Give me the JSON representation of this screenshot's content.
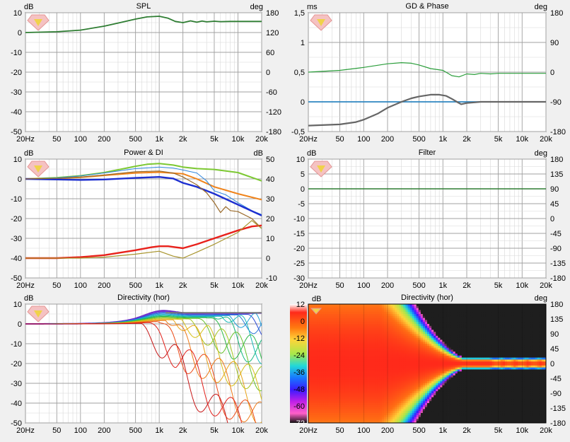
{
  "chart_data": [
    {
      "id": "spl",
      "type": "line",
      "title": "SPL",
      "left_unit": "dB",
      "right_unit": "deg",
      "x_ticks": [
        "20Hz",
        "50",
        "100",
        "200",
        "500",
        "1k",
        "2k",
        "5k",
        "10k",
        "20k"
      ],
      "y_left_ticks": [
        "10",
        "0",
        "-10",
        "-20",
        "-30",
        "-40",
        "-50"
      ],
      "y_right_ticks": [
        "180",
        "120",
        "60",
        "0",
        "-60",
        "-120",
        "-180"
      ],
      "xlim": [
        20,
        20000
      ],
      "ylim": [
        -50,
        10
      ],
      "y2lim": [
        -180,
        180
      ],
      "grid": true,
      "series": [
        {
          "color": "#2e7d32",
          "width": 1.8,
          "axis": "left",
          "x": [
            20,
            50,
            100,
            200,
            300,
            500,
            700,
            1000,
            1300,
            1600,
            2000,
            2500,
            3000,
            3500,
            4000,
            5000,
            6000,
            8000,
            10000,
            15000,
            20000
          ],
          "y": [
            0,
            0.4,
            1.2,
            3.2,
            4.8,
            6.8,
            7.9,
            8.2,
            7.2,
            5.6,
            5.0,
            5.9,
            5.2,
            5.8,
            5.4,
            5.7,
            5.5,
            5.6,
            5.6,
            5.6,
            5.6
          ]
        }
      ]
    },
    {
      "id": "gd",
      "type": "line",
      "title": "GD & Phase",
      "left_unit": "ms",
      "right_unit": "deg",
      "x_ticks": [
        "20Hz",
        "50",
        "100",
        "200",
        "500",
        "1k",
        "2k",
        "5k",
        "10k",
        "20k"
      ],
      "y_left_ticks": [
        "1,5",
        "1",
        "0,5",
        "0",
        "-0,5"
      ],
      "y_right_ticks": [
        "180",
        "90",
        "0",
        "-90",
        "-180"
      ],
      "xlim": [
        20,
        20000
      ],
      "ylim": [
        -0.5,
        1.5
      ],
      "y2lim": [
        -180,
        180
      ],
      "grid": true,
      "series": [
        {
          "color": "#2a9d3a",
          "width": 1.2,
          "axis": "left",
          "x": [
            20,
            50,
            100,
            200,
            300,
            400,
            500,
            700,
            1000,
            1300,
            1600,
            2000,
            2500,
            3000,
            4000,
            5000,
            7000,
            10000,
            20000
          ],
          "y": [
            0.5,
            0.53,
            0.58,
            0.64,
            0.66,
            0.65,
            0.62,
            0.56,
            0.53,
            0.44,
            0.42,
            0.47,
            0.46,
            0.48,
            0.47,
            0.48,
            0.48,
            0.48,
            0.48
          ]
        },
        {
          "color": "#2e86c1",
          "width": 1.8,
          "axis": "left",
          "x": [
            20,
            20000
          ],
          "y": [
            0,
            0
          ]
        },
        {
          "color": "#666666",
          "width": 2.2,
          "axis": "left",
          "x": [
            20,
            50,
            80,
            100,
            150,
            200,
            300,
            400,
            500,
            700,
            900,
            1100,
            1300,
            1500,
            1700,
            2000,
            2500,
            3000,
            4000,
            5000,
            7000,
            10000,
            20000
          ],
          "y": [
            -0.4,
            -0.38,
            -0.34,
            -0.3,
            -0.2,
            -0.1,
            0.0,
            0.06,
            0.09,
            0.12,
            0.12,
            0.1,
            0.05,
            0.0,
            -0.04,
            -0.02,
            -0.01,
            0.0,
            0.0,
            0.0,
            0.0,
            0.0,
            0.0
          ]
        }
      ]
    },
    {
      "id": "power",
      "type": "line",
      "title": "Power & DI",
      "left_unit": "dB",
      "right_unit": "dB",
      "x_ticks": [
        "20Hz",
        "50",
        "100",
        "200",
        "500",
        "1k",
        "2k",
        "5k",
        "10k",
        "20k"
      ],
      "y_left_ticks": [
        "10",
        "0",
        "-10",
        "-20",
        "-30",
        "-40",
        "-50"
      ],
      "y_right_ticks": [
        "50",
        "40",
        "30",
        "20",
        "10",
        "0",
        "-10"
      ],
      "xlim": [
        20,
        20000
      ],
      "ylim": [
        -50,
        10
      ],
      "y2lim": [
        -10,
        50
      ],
      "grid": true,
      "series": [
        {
          "color": "#7cc832",
          "width": 2,
          "axis": "left",
          "x": [
            20,
            50,
            100,
            200,
            500,
            700,
            1000,
            1500,
            2000,
            3000,
            5000,
            10000,
            20000
          ],
          "y": [
            0,
            0.6,
            1.6,
            3.2,
            6.4,
            7.4,
            7.8,
            7.0,
            6.0,
            5.2,
            4.8,
            3.2,
            -1
          ]
        },
        {
          "color": "#f0831a",
          "width": 2,
          "axis": "left",
          "x": [
            20,
            50,
            100,
            200,
            500,
            1000,
            2000,
            3000,
            5000,
            10000,
            20000
          ],
          "y": [
            0,
            0.3,
            0.8,
            1.8,
            3.0,
            3.4,
            2.6,
            0,
            -4,
            -7.5,
            -10.5
          ]
        },
        {
          "color": "#2e86de",
          "width": 1,
          "axis": "left",
          "x": [
            20,
            50,
            100,
            200,
            500,
            1000,
            1500,
            2000,
            3000,
            4000,
            5000,
            7000,
            10000,
            15000,
            20000
          ],
          "y": [
            0,
            0.5,
            1.5,
            3,
            5.2,
            6,
            5.5,
            4.5,
            3,
            -1,
            -6,
            -8,
            -12,
            -16,
            -18
          ]
        },
        {
          "color": "#1d2fd0",
          "width": 2.4,
          "axis": "left",
          "x": [
            20,
            50,
            100,
            200,
            500,
            1000,
            1500,
            2000,
            3000,
            5000,
            10000,
            20000
          ],
          "y": [
            0,
            -0.3,
            -0.5,
            -0.3,
            0.5,
            1.0,
            0.2,
            -2.0,
            -4.0,
            -7.5,
            -13,
            -18.5
          ]
        },
        {
          "color": "#9a6a2a",
          "width": 1.2,
          "axis": "left",
          "x": [
            20,
            50,
            100,
            200,
            500,
            1000,
            1500,
            2000,
            3000,
            4000,
            5000,
            6000,
            7000,
            8000,
            10000,
            15000,
            20000
          ],
          "y": [
            0,
            0.3,
            0.9,
            2,
            3.6,
            4,
            3,
            1,
            -3,
            -7,
            -12,
            -17,
            -14,
            -16,
            -16.5,
            -20,
            -25
          ]
        },
        {
          "color": "#e8211b",
          "width": 2.4,
          "axis": "left",
          "x": [
            20,
            50,
            100,
            200,
            500,
            800,
            1000,
            1300,
            1600,
            2000,
            3000,
            5000,
            10000,
            15000,
            20000
          ],
          "y": [
            -40,
            -40,
            -39.5,
            -38.5,
            -36,
            -34.5,
            -34,
            -34,
            -34.5,
            -35,
            -33,
            -30,
            -26,
            -24,
            -23.5
          ]
        },
        {
          "color": "#a8942c",
          "width": 1.2,
          "axis": "left",
          "x": [
            20,
            50,
            100,
            200,
            500,
            1000,
            1500,
            2000,
            3000,
            5000,
            10000,
            15000,
            20000
          ],
          "y": [
            -40,
            -40,
            -40,
            -39.5,
            -38,
            -36.5,
            -39,
            -40,
            -37,
            -33,
            -27,
            -21,
            -25
          ]
        }
      ]
    },
    {
      "id": "filter",
      "type": "line",
      "title": "Filter",
      "left_unit": "dB",
      "right_unit": "deg",
      "x_ticks": [
        "20Hz",
        "50",
        "100",
        "200",
        "500",
        "1k",
        "2k",
        "5k",
        "10k",
        "20k"
      ],
      "y_left_ticks": [
        "10",
        "5",
        "0",
        "-5",
        "-10",
        "-15",
        "-20",
        "-25",
        "-30"
      ],
      "y_right_ticks": [
        "180",
        "135",
        "90",
        "45",
        "0",
        "-45",
        "-90",
        "-135",
        "-180"
      ],
      "xlim": [
        20,
        20000
      ],
      "ylim": [
        -30,
        10
      ],
      "y2lim": [
        -180,
        180
      ],
      "grid": true,
      "series": [
        {
          "color": "#2e7d32",
          "width": 1.4,
          "axis": "left",
          "x": [
            20,
            20000
          ],
          "y": [
            0,
            0
          ]
        }
      ]
    },
    {
      "id": "dir",
      "type": "line",
      "title": "Directivity (hor)",
      "left_unit": "dB",
      "right_unit": "",
      "x_ticks": [
        "20Hz",
        "50",
        "100",
        "200",
        "500",
        "1k",
        "2k",
        "5k",
        "10k",
        "20k"
      ],
      "y_left_ticks": [
        "10",
        "0",
        "-10",
        "-20",
        "-30",
        "-40",
        "-50"
      ],
      "y_right_ticks": [],
      "xlim": [
        20,
        20000
      ],
      "ylim": [
        -50,
        10
      ],
      "grid": true,
      "series_note": "family of horizontal off-axis responses 0-180 deg"
    },
    {
      "id": "heat",
      "type": "heatmap",
      "title": "Directivity (hor)",
      "left_unit": "dB",
      "right_unit": "deg",
      "x_ticks": [
        "20Hz",
        "50",
        "100",
        "200",
        "500",
        "1k",
        "2k",
        "5k",
        "10k",
        "20k"
      ],
      "color_ticks": [
        "12",
        "0",
        "-12",
        "-24",
        "-36",
        "-48",
        "-60",
        "-72"
      ],
      "y_right_ticks": [
        "180",
        "135",
        "90",
        "45",
        "0",
        "-45",
        "-90",
        "-135",
        "-180"
      ],
      "xlim": [
        20,
        20000
      ],
      "ylim": [
        -180,
        180
      ],
      "color_range": [
        -72,
        12
      ]
    }
  ]
}
